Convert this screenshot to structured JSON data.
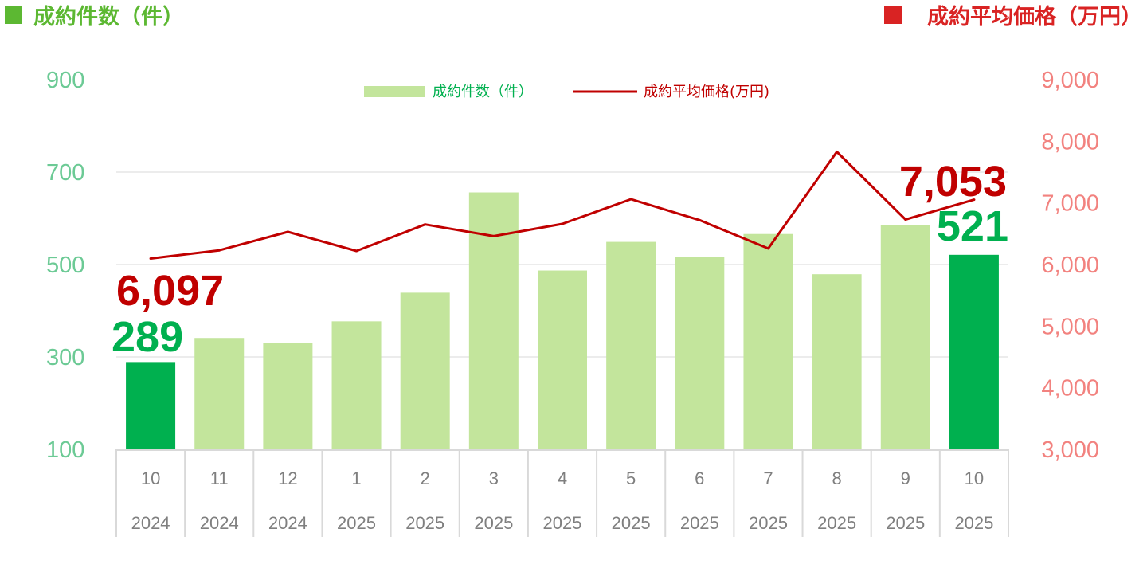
{
  "header": {
    "left_title": "成約件数（件）",
    "right_title": "成約平均価格（万円）"
  },
  "legend": {
    "bars_label": "成約件数（件）",
    "line_label": "成約平均価格(万円)"
  },
  "colors": {
    "bar": "#c3e59c",
    "bar_highlight": "#00b04f",
    "left_axis_text": "#6cca95",
    "right_axis_text": "#f2827f",
    "line": "#c00000",
    "left_header": "#5cb832",
    "right_header": "#d92323",
    "grid": "#d9d9d9"
  },
  "callouts": {
    "start_price": "6,097",
    "start_count": "289",
    "end_price": "7,053",
    "end_count": "521"
  },
  "chart_data": {
    "type": "bar",
    "categories": [
      {
        "month": "10",
        "year": "2024"
      },
      {
        "month": "11",
        "year": "2024"
      },
      {
        "month": "12",
        "year": "2024"
      },
      {
        "month": "1",
        "year": "2025"
      },
      {
        "month": "2",
        "year": "2025"
      },
      {
        "month": "3",
        "year": "2025"
      },
      {
        "month": "4",
        "year": "2025"
      },
      {
        "month": "5",
        "year": "2025"
      },
      {
        "month": "6",
        "year": "2025"
      },
      {
        "month": "7",
        "year": "2025"
      },
      {
        "month": "8",
        "year": "2025"
      },
      {
        "month": "9",
        "year": "2025"
      },
      {
        "month": "10",
        "year": "2025"
      }
    ],
    "series": [
      {
        "name": "成約件数（件）",
        "type": "bar",
        "axis": "left",
        "values": [
          289,
          341,
          331,
          377,
          439,
          656,
          487,
          549,
          516,
          566,
          479,
          586,
          521
        ],
        "highlight_indices": [
          0,
          12
        ]
      },
      {
        "name": "成約平均価格(万円)",
        "type": "line",
        "axis": "right",
        "values": [
          6097,
          6230,
          6530,
          6220,
          6650,
          6460,
          6660,
          7060,
          6720,
          6260,
          7830,
          6730,
          7053
        ]
      }
    ],
    "y_left": {
      "min": 100,
      "max": 900,
      "ticks": [
        "900",
        "700",
        "500",
        "300",
        "100"
      ]
    },
    "y_right": {
      "min": 3000,
      "max": 9000,
      "ticks": [
        "9,000",
        "8,000",
        "7,000",
        "6,000",
        "5,000",
        "4,000",
        "3,000"
      ]
    },
    "grid": true,
    "legend_position": "top-center"
  }
}
